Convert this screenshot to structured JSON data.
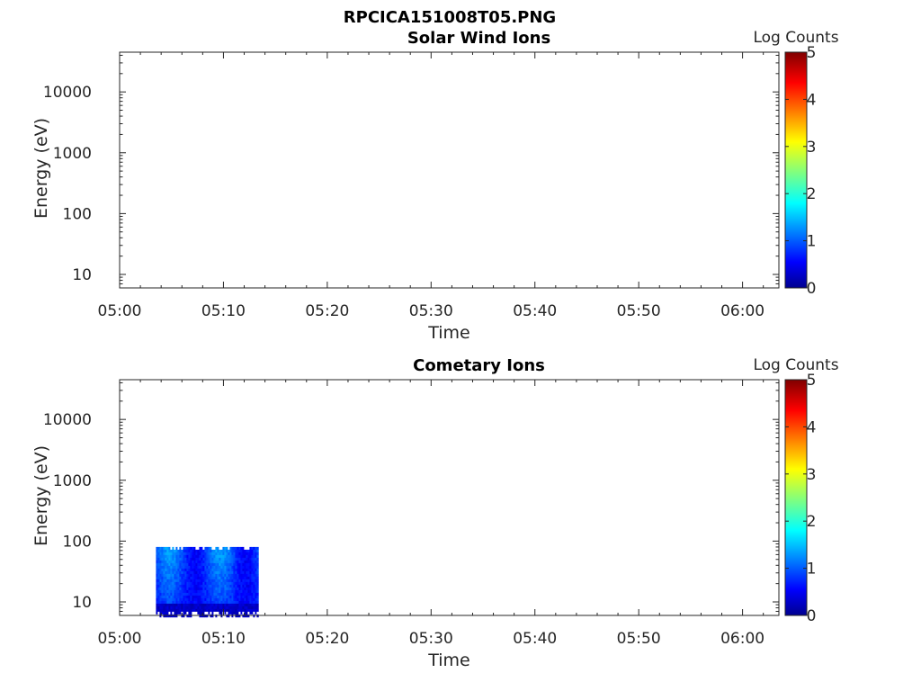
{
  "figure": {
    "title": "RPCICA151008T05.PNG"
  },
  "chart_data": [
    {
      "type": "heatmap",
      "title": "Solar Wind Ions",
      "xlabel": "Time",
      "ylabel": "Energy (eV)",
      "x_ticks": [
        "05:00",
        "05:10",
        "05:20",
        "05:30",
        "05:40",
        "05:50",
        "06:00"
      ],
      "xlim_minutes": [
        0,
        63.5
      ],
      "y_scale": "log",
      "y_ticks": [
        10,
        100,
        1000,
        10000
      ],
      "ylim": [
        6,
        45000
      ],
      "colorbar": {
        "label": "Log Counts",
        "ticks": [
          0,
          1,
          2,
          3,
          4,
          5
        ],
        "range": [
          0,
          5
        ],
        "colormap": "jet"
      },
      "grid": false,
      "data_regions": []
    },
    {
      "type": "heatmap",
      "title": "Cometary Ions",
      "xlabel": "Time",
      "ylabel": "Energy (eV)",
      "x_ticks": [
        "05:00",
        "05:10",
        "05:20",
        "05:30",
        "05:40",
        "05:50",
        "06:00"
      ],
      "xlim_minutes": [
        0,
        63.5
      ],
      "y_scale": "log",
      "y_ticks": [
        10,
        100,
        1000,
        10000
      ],
      "ylim": [
        6,
        45000
      ],
      "colorbar": {
        "label": "Log Counts",
        "ticks": [
          0,
          1,
          2,
          3,
          4,
          5
        ],
        "range": [
          0,
          5
        ],
        "colormap": "jet"
      },
      "grid": false,
      "data_regions": [
        {
          "t_start_minutes": 3.5,
          "t_end_minutes": 13.3,
          "energy_min_ev": 6,
          "energy_max_ev": 80,
          "log_counts_range": [
            0,
            1.3
          ]
        }
      ]
    }
  ]
}
